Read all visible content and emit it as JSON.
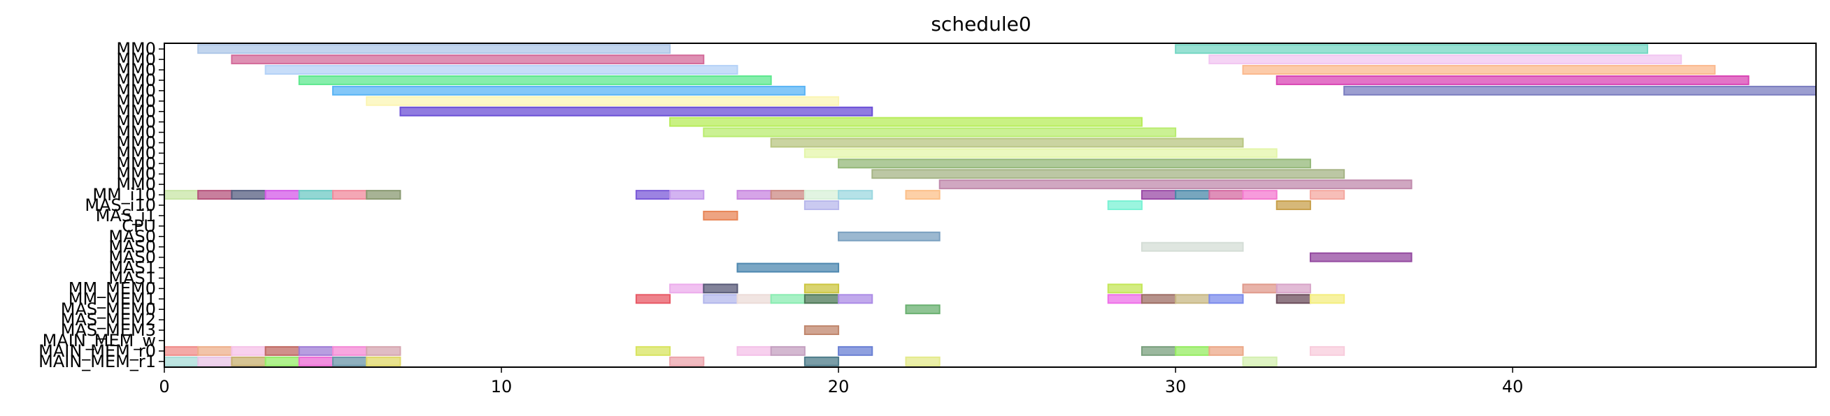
{
  "chart_data": {
    "type": "gantt",
    "title": "schedule0",
    "xlabel": "",
    "ylabel": "",
    "xlim": [
      0,
      49
    ],
    "x_ticks": [
      0,
      10,
      20,
      30,
      40
    ],
    "grid": false,
    "rows": [
      "MM0",
      "MM0",
      "MM0",
      "MM0",
      "MM0",
      "MM0",
      "MM0",
      "MM0",
      "MM0",
      "MM0",
      "MM0",
      "MM0",
      "MM0",
      "MM0",
      "MM_i10",
      "MAS_i10",
      "MAS_i1",
      "CPU",
      "MAS0",
      "MAS0",
      "MAS0",
      "MAS1",
      "MAS1",
      "MM_MEM0",
      "MM_MEM1",
      "MAS_MEM0",
      "MAS_MEM2",
      "MAS_MEM3",
      "MAIN_MEM_w",
      "MAIN_MEM_r0",
      "MAIN_MEM_r1"
    ],
    "tasks": [
      {
        "row": 0,
        "start": 1,
        "end": 15,
        "color": "#aec7e8"
      },
      {
        "row": 0,
        "start": 30,
        "end": 44,
        "color": "#76d7c4"
      },
      {
        "row": 1,
        "start": 2,
        "end": 16,
        "color": "#d36b9a"
      },
      {
        "row": 1,
        "start": 31,
        "end": 45,
        "color": "#f2c6f2"
      },
      {
        "row": 2,
        "start": 3,
        "end": 17,
        "color": "#b4d2f7"
      },
      {
        "row": 2,
        "start": 32,
        "end": 46,
        "color": "#fbb98e"
      },
      {
        "row": 3,
        "start": 4,
        "end": 18,
        "color": "#5ee88f"
      },
      {
        "row": 3,
        "start": 33,
        "end": 47,
        "color": "#d946b4"
      },
      {
        "row": 4,
        "start": 5,
        "end": 19,
        "color": "#5ab4f5"
      },
      {
        "row": 4,
        "start": 35,
        "end": 49,
        "color": "#7b7ec0"
      },
      {
        "row": 5,
        "start": 6,
        "end": 20,
        "color": "#fbf5b4"
      },
      {
        "row": 6,
        "start": 7,
        "end": 21,
        "color": "#6b4fd6"
      },
      {
        "row": 7,
        "start": 15,
        "end": 29,
        "color": "#b7ec5a"
      },
      {
        "row": 8,
        "start": 16,
        "end": 30,
        "color": "#b9ec70"
      },
      {
        "row": 9,
        "start": 18,
        "end": 32,
        "color": "#b8c682"
      },
      {
        "row": 10,
        "start": 19,
        "end": 33,
        "color": "#e4f6aa"
      },
      {
        "row": 11,
        "start": 20,
        "end": 34,
        "color": "#94b878"
      },
      {
        "row": 12,
        "start": 21,
        "end": 35,
        "color": "#a6b486"
      },
      {
        "row": 13,
        "start": 23,
        "end": 37,
        "color": "#c08aac"
      },
      {
        "row": 14,
        "start": 0,
        "end": 1,
        "color": "#c8e6a6"
      },
      {
        "row": 14,
        "start": 1,
        "end": 2,
        "color": "#b6547c"
      },
      {
        "row": 14,
        "start": 2,
        "end": 3,
        "color": "#565e80"
      },
      {
        "row": 14,
        "start": 3,
        "end": 4,
        "color": "#d45ae8"
      },
      {
        "row": 14,
        "start": 4,
        "end": 5,
        "color": "#6ecac4"
      },
      {
        "row": 14,
        "start": 5,
        "end": 6,
        "color": "#f08a9c"
      },
      {
        "row": 14,
        "start": 6,
        "end": 7,
        "color": "#8a9a72"
      },
      {
        "row": 14,
        "start": 14,
        "end": 15,
        "color": "#7b5ad8"
      },
      {
        "row": 14,
        "start": 15,
        "end": 16,
        "color": "#c49aec"
      },
      {
        "row": 14,
        "start": 17,
        "end": 18,
        "color": "#c886e0"
      },
      {
        "row": 14,
        "start": 18,
        "end": 19,
        "color": "#cc8a84"
      },
      {
        "row": 14,
        "start": 19,
        "end": 20,
        "color": "#d8f0d8"
      },
      {
        "row": 14,
        "start": 20,
        "end": 21,
        "color": "#9cd8e0"
      },
      {
        "row": 14,
        "start": 22,
        "end": 23,
        "color": "#fcc08a"
      },
      {
        "row": 14,
        "start": 29,
        "end": 30,
        "color": "#9a4aa6"
      },
      {
        "row": 14,
        "start": 30,
        "end": 31,
        "color": "#4a88a8"
      },
      {
        "row": 14,
        "start": 31,
        "end": 32,
        "color": "#d46aa0"
      },
      {
        "row": 14,
        "start": 32,
        "end": 33,
        "color": "#f47ad0"
      },
      {
        "row": 14,
        "start": 34,
        "end": 35,
        "color": "#f4a8a0"
      },
      {
        "row": 15,
        "start": 19,
        "end": 20,
        "color": "#b8b8ec"
      },
      {
        "row": 15,
        "start": 28,
        "end": 29,
        "color": "#7af2d4"
      },
      {
        "row": 15,
        "start": 33,
        "end": 34,
        "color": "#c8a04c"
      },
      {
        "row": 16,
        "start": 16,
        "end": 17,
        "color": "#e88658"
      },
      {
        "row": 18,
        "start": 20,
        "end": 23,
        "color": "#7aa0c0"
      },
      {
        "row": 19,
        "start": 29,
        "end": 32,
        "color": "#d4ddd6"
      },
      {
        "row": 20,
        "start": 34,
        "end": 37,
        "color": "#944aa0"
      },
      {
        "row": 21,
        "start": 17,
        "end": 20,
        "color": "#4e88b0"
      },
      {
        "row": 23,
        "start": 15,
        "end": 16,
        "color": "#ecacec"
      },
      {
        "row": 23,
        "start": 16,
        "end": 17,
        "color": "#585a78"
      },
      {
        "row": 23,
        "start": 19,
        "end": 20,
        "color": "#ccc640"
      },
      {
        "row": 23,
        "start": 28,
        "end": 29,
        "color": "#c4e658"
      },
      {
        "row": 23,
        "start": 32,
        "end": 33,
        "color": "#e09a8c"
      },
      {
        "row": 23,
        "start": 33,
        "end": 34,
        "color": "#d8a4c8"
      },
      {
        "row": 24,
        "start": 14,
        "end": 15,
        "color": "#e85a66"
      },
      {
        "row": 24,
        "start": 16,
        "end": 17,
        "color": "#b4b8ec"
      },
      {
        "row": 24,
        "start": 17,
        "end": 18,
        "color": "#ecdcd8"
      },
      {
        "row": 24,
        "start": 18,
        "end": 19,
        "color": "#8aecb2"
      },
      {
        "row": 24,
        "start": 19,
        "end": 20,
        "color": "#4e7a58"
      },
      {
        "row": 24,
        "start": 20,
        "end": 21,
        "color": "#ac8ce6"
      },
      {
        "row": 24,
        "start": 28,
        "end": 29,
        "color": "#ee70e8"
      },
      {
        "row": 24,
        "start": 29,
        "end": 30,
        "color": "#9e6e64"
      },
      {
        "row": 24,
        "start": 30,
        "end": 31,
        "color": "#c8b884"
      },
      {
        "row": 24,
        "start": 31,
        "end": 32,
        "color": "#7c8cec"
      },
      {
        "row": 24,
        "start": 33,
        "end": 34,
        "color": "#6c4e5c"
      },
      {
        "row": 24,
        "start": 34,
        "end": 35,
        "color": "#f4ee80"
      },
      {
        "row": 25,
        "start": 22,
        "end": 23,
        "color": "#6ab070"
      },
      {
        "row": 27,
        "start": 19,
        "end": 20,
        "color": "#c0866c"
      },
      {
        "row": 29,
        "start": 0,
        "end": 1,
        "color": "#f08c8a"
      },
      {
        "row": 29,
        "start": 1,
        "end": 2,
        "color": "#eeb08c"
      },
      {
        "row": 29,
        "start": 2,
        "end": 3,
        "color": "#f6c2e8"
      },
      {
        "row": 29,
        "start": 3,
        "end": 4,
        "color": "#c06a64"
      },
      {
        "row": 29,
        "start": 4,
        "end": 5,
        "color": "#a07ed6"
      },
      {
        "row": 29,
        "start": 5,
        "end": 6,
        "color": "#f48ad6"
      },
      {
        "row": 29,
        "start": 6,
        "end": 7,
        "color": "#d6a6b0"
      },
      {
        "row": 29,
        "start": 14,
        "end": 15,
        "color": "#d8e460"
      },
      {
        "row": 29,
        "start": 17,
        "end": 18,
        "color": "#f4c0e8"
      },
      {
        "row": 29,
        "start": 18,
        "end": 19,
        "color": "#c4a0c0"
      },
      {
        "row": 29,
        "start": 20,
        "end": 21,
        "color": "#6a80d4"
      },
      {
        "row": 29,
        "start": 29,
        "end": 30,
        "color": "#7aa07e"
      },
      {
        "row": 29,
        "start": 30,
        "end": 31,
        "color": "#96ec62"
      },
      {
        "row": 29,
        "start": 31,
        "end": 32,
        "color": "#eca888"
      },
      {
        "row": 29,
        "start": 34,
        "end": 35,
        "color": "#f8ccdc"
      },
      {
        "row": 30,
        "start": 0,
        "end": 1,
        "color": "#a8dcd8"
      },
      {
        "row": 30,
        "start": 1,
        "end": 2,
        "color": "#e8c4e6"
      },
      {
        "row": 30,
        "start": 2,
        "end": 3,
        "color": "#c8b070"
      },
      {
        "row": 30,
        "start": 3,
        "end": 4,
        "color": "#96ec68"
      },
      {
        "row": 30,
        "start": 4,
        "end": 5,
        "color": "#ec6ad4"
      },
      {
        "row": 30,
        "start": 5,
        "end": 6,
        "color": "#6a96a8"
      },
      {
        "row": 30,
        "start": 6,
        "end": 7,
        "color": "#e0d868"
      },
      {
        "row": 30,
        "start": 15,
        "end": 16,
        "color": "#eca4ac"
      },
      {
        "row": 30,
        "start": 19,
        "end": 20,
        "color": "#4e7c8a"
      },
      {
        "row": 30,
        "start": 22,
        "end": 23,
        "color": "#e4ea8c"
      },
      {
        "row": 30,
        "start": 32,
        "end": 33,
        "color": "#d4f0b0"
      }
    ]
  }
}
